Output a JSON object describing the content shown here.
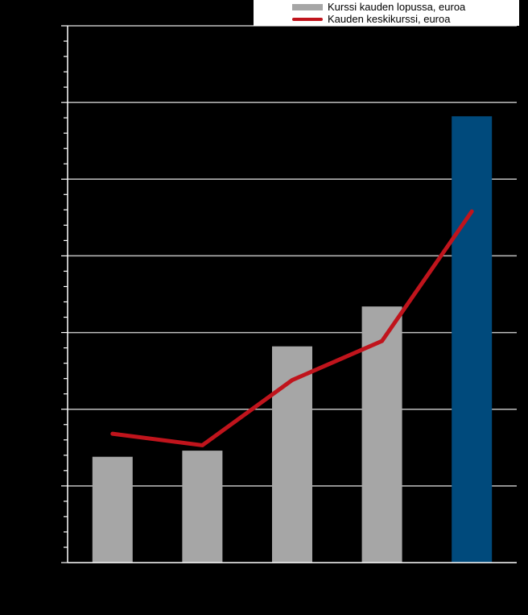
{
  "chart_data": {
    "type": "bar",
    "categories": [
      "",
      "",
      "",
      "",
      ""
    ],
    "series": [
      {
        "name": "Kurssi kauden lopussa, euroa",
        "type": "bar",
        "values": [
          1.38,
          1.46,
          2.82,
          3.34,
          5.82
        ],
        "colors": [
          "#a6a6a6",
          "#a6a6a6",
          "#a6a6a6",
          "#a6a6a6",
          "#004a7c"
        ]
      },
      {
        "name": "Kauden keskikurssi, euroa",
        "type": "line",
        "values": [
          1.68,
          1.53,
          2.38,
          2.89,
          4.58
        ],
        "color": "#c0141c"
      }
    ],
    "ylim": [
      0,
      7
    ],
    "major_ticks": [
      0,
      1,
      2,
      3,
      4,
      5,
      6,
      7
    ],
    "minor_ticks_per_major": 5,
    "grid": true,
    "grid_color": "#c0c0c0",
    "background": "#000000",
    "legend_position": "top-right",
    "title": "",
    "xlabel": "",
    "ylabel": ""
  }
}
